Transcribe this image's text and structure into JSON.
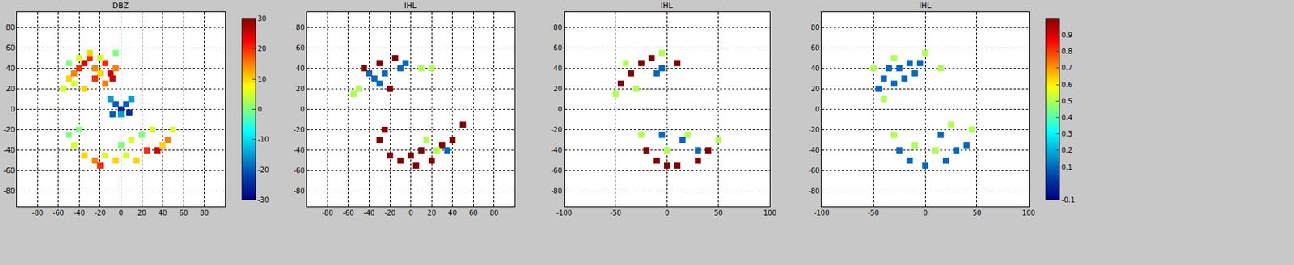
{
  "chart_data": [
    {
      "type": "scatter",
      "title": "DBZ",
      "grid": true,
      "xlim": [
        -100,
        100
      ],
      "ylim": [
        -95,
        95
      ],
      "xticks": [
        -80,
        -60,
        -40,
        -20,
        0,
        20,
        40,
        60,
        80
      ],
      "yticks": [
        -80,
        -60,
        -40,
        -20,
        0,
        20,
        40,
        60,
        80
      ],
      "x": [
        -55,
        -50,
        -45,
        -40,
        -35,
        -30,
        -25,
        -20,
        -15,
        -10,
        -5,
        -45,
        -35,
        -25,
        -15,
        -8,
        -50,
        -40,
        -30,
        -20,
        -5,
        0,
        -5,
        5,
        0,
        8,
        -8,
        -10,
        10,
        -50,
        -45,
        -35,
        -25,
        -15,
        -5,
        5,
        15,
        25,
        35,
        45,
        50,
        20,
        30,
        40,
        -20,
        -40,
        10,
        0
      ],
      "y": [
        20,
        30,
        35,
        40,
        45,
        50,
        40,
        35,
        45,
        35,
        40,
        25,
        20,
        30,
        25,
        30,
        45,
        50,
        55,
        50,
        55,
        0,
        5,
        5,
        -5,
        -3,
        -5,
        10,
        10,
        -25,
        -35,
        -45,
        -50,
        -45,
        -50,
        -45,
        -50,
        -40,
        -40,
        -30,
        -20,
        -25,
        -20,
        -35,
        -55,
        -20,
        -30,
        -35
      ],
      "values": [
        5,
        10,
        15,
        20,
        25,
        20,
        15,
        10,
        20,
        25,
        15,
        5,
        10,
        20,
        15,
        25,
        0,
        5,
        10,
        5,
        0,
        -25,
        -20,
        -20,
        -15,
        -25,
        -20,
        -15,
        -15,
        0,
        5,
        10,
        15,
        5,
        10,
        5,
        10,
        20,
        25,
        15,
        5,
        0,
        5,
        10,
        20,
        0,
        5,
        0
      ],
      "colorbar": {
        "range": [
          -30,
          30
        ],
        "ticks": [
          -30,
          -20,
          -10,
          0,
          10,
          20,
          30
        ]
      }
    },
    {
      "type": "scatter",
      "title": "IHL",
      "grid": true,
      "xlim": [
        -100,
        100
      ],
      "ylim": [
        -95,
        95
      ],
      "xticks": [
        -80,
        -60,
        -40,
        -20,
        0,
        20,
        40,
        60,
        80
      ],
      "yticks": [
        -80,
        -60,
        -40,
        -20,
        0,
        20,
        40,
        60,
        80
      ],
      "x": [
        -35,
        -30,
        -25,
        -10,
        -5,
        -40,
        -45,
        -30,
        -20,
        -15,
        -50,
        -55,
        10,
        20,
        -30,
        -20,
        -10,
        0,
        10,
        20,
        30,
        40,
        50,
        15,
        25,
        35,
        -25,
        5
      ],
      "y": [
        30,
        25,
        35,
        40,
        45,
        35,
        40,
        45,
        20,
        50,
        20,
        15,
        40,
        40,
        -30,
        -45,
        -50,
        -45,
        -40,
        -50,
        -35,
        -30,
        -15,
        -30,
        -40,
        -40,
        -20,
        -55
      ],
      "values": [
        0.1,
        0.1,
        0.1,
        0.1,
        0.1,
        0.1,
        1,
        1,
        1,
        1,
        0.5,
        0.5,
        0.5,
        0.5,
        1,
        1,
        1,
        1,
        1,
        1,
        1,
        1,
        1,
        0.5,
        0.5,
        0.1,
        1,
        1
      ]
    },
    {
      "type": "scatter",
      "title": "IHL",
      "grid": true,
      "xlim": [
        -100,
        100
      ],
      "ylim": [
        -95,
        95
      ],
      "xticks": [
        -100,
        -50,
        0,
        50,
        100
      ],
      "yticks": [
        -80,
        -60,
        -40,
        -20,
        0,
        20,
        40,
        60,
        80
      ],
      "x": [
        -45,
        -35,
        -25,
        -15,
        -40,
        -50,
        -5,
        -30,
        -10,
        -5,
        10,
        -20,
        -10,
        10,
        30,
        40,
        -25,
        0,
        20,
        50,
        30,
        15,
        -5,
        0
      ],
      "y": [
        25,
        35,
        45,
        50,
        45,
        15,
        55,
        20,
        35,
        40,
        45,
        -40,
        -50,
        -55,
        -50,
        -40,
        -25,
        -40,
        -25,
        -30,
        -40,
        -30,
        -25,
        -55
      ],
      "values": [
        1,
        1,
        1,
        1,
        0.5,
        0.5,
        0.5,
        0.5,
        0.1,
        0.1,
        1,
        1,
        1,
        1,
        1,
        1,
        0.5,
        0.5,
        0.5,
        0.5,
        0.1,
        0.1,
        0.1,
        1
      ]
    },
    {
      "type": "scatter",
      "title": "IHL",
      "grid": true,
      "xlim": [
        -100,
        100
      ],
      "ylim": [
        -95,
        95
      ],
      "xticks": [
        -100,
        -50,
        0,
        50,
        100
      ],
      "yticks": [
        -80,
        -60,
        -40,
        -20,
        0,
        20,
        40,
        60,
        80
      ],
      "x": [
        -45,
        -40,
        -35,
        -25,
        -15,
        -5,
        -10,
        -30,
        -20,
        -50,
        -30,
        0,
        15,
        -40,
        -25,
        -15,
        0,
        20,
        30,
        40,
        15,
        -30,
        -10,
        10,
        45,
        25
      ],
      "y": [
        20,
        30,
        40,
        40,
        45,
        45,
        35,
        25,
        30,
        40,
        50,
        55,
        40,
        10,
        -40,
        -50,
        -55,
        -50,
        -40,
        -35,
        -25,
        -25,
        -35,
        -40,
        -20,
        -15
      ],
      "values": [
        0.1,
        0.1,
        0.1,
        0.1,
        0.1,
        0.1,
        0.1,
        0.1,
        0.1,
        0.5,
        0.5,
        0.5,
        0.5,
        0.5,
        0.1,
        0.1,
        0.1,
        0.1,
        0.1,
        0.1,
        0.1,
        0.5,
        0.5,
        0.5,
        0.5,
        0.5
      ],
      "colorbar": {
        "range": [
          -0.1,
          1
        ],
        "ticks": [
          -0.1,
          0.1,
          0.2,
          0.3,
          0.4,
          0.5,
          0.6,
          0.7,
          0.8,
          0.9
        ]
      }
    }
  ]
}
